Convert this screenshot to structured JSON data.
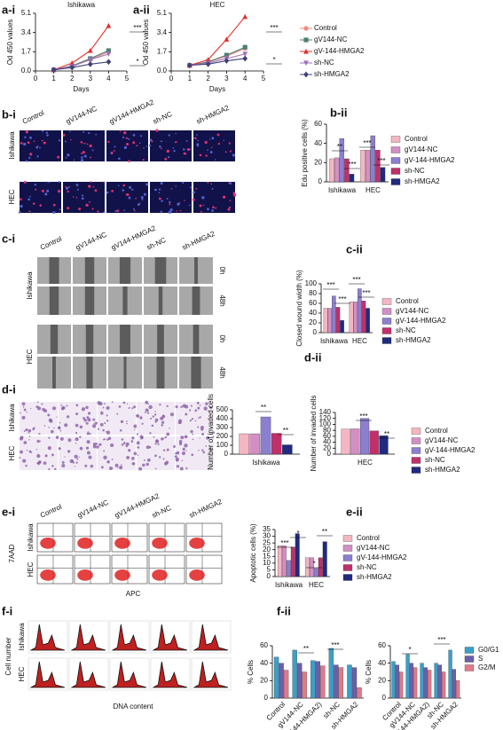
{
  "panel_labels": [
    "a-i",
    "a-ii",
    "b-i",
    "b-ii",
    "c-i",
    "c-ii",
    "d-i",
    "d-ii",
    "e-i",
    "e-ii",
    "f-i",
    "f-ii"
  ],
  "images": {
    "b_i": {
      "columns": [
        "Control",
        "gV144-NC",
        "gV144-HMGA2",
        "sh-NC",
        "sh-HMGA2"
      ],
      "rows": [
        "Ishikawa",
        "HEC"
      ]
    },
    "c_i": {
      "columns": [
        "Control",
        "gV144-NC",
        "gV144-HMGA2",
        "sh-NC",
        "sh-HMGA2"
      ],
      "rows": [
        "Ishikawa",
        "HEC"
      ],
      "times": [
        "0h",
        "48h"
      ]
    },
    "d_i": {
      "rows": [
        "Ishikawa",
        "HEC"
      ]
    },
    "e_i": {
      "columns": [
        "Control",
        "gV144-NC",
        "gV144-HMGA2",
        "sh-NC",
        "sh-HMGA2"
      ],
      "rows": [
        "Ishikawa",
        "HEC"
      ],
      "ylabel": "7AAD",
      "xlabel": "APC"
    },
    "f_i": {
      "rows": [
        "Ishikawa",
        "HEC"
      ],
      "ylabel": "Cell number",
      "xlabel": "DNA content"
    }
  },
  "chart_data": [
    {
      "type": "line",
      "title": "Ishikawa",
      "ylabel": "Od 450 values",
      "xlabel": "Days",
      "x": [
        1,
        2,
        3,
        4
      ],
      "xlim": [
        0,
        5
      ],
      "xticks": [
        0,
        1,
        2,
        3,
        4,
        5
      ],
      "ylim": [
        0,
        5.1
      ],
      "yticks": [
        {
          "value": 0,
          "label": "0.0"
        },
        1.7,
        3.4,
        5.1
      ],
      "series": [
        {
          "name": "Control",
          "color": "#f08a80",
          "marker": "circle",
          "values": [
            0.1,
            0.4,
            1.0,
            1.7
          ]
        },
        {
          "name": "gV144-NC",
          "color": "#4f7f74",
          "marker": "square",
          "values": [
            0.1,
            0.45,
            1.1,
            1.8
          ]
        },
        {
          "name": "gV-144-HMGA2",
          "color": "#e0302a",
          "marker": "triangle",
          "values": [
            0.1,
            0.7,
            1.8,
            4.0
          ]
        },
        {
          "name": "sh-NC",
          "color": "#a070b8",
          "marker": "triangle-down",
          "values": [
            0.1,
            0.4,
            1.0,
            1.5
          ]
        },
        {
          "name": "sh-HMGA2",
          "color": "#40407a",
          "marker": "diamond",
          "values": [
            0.1,
            0.3,
            0.6,
            0.8
          ]
        }
      ],
      "annotations": [
        "***",
        "*"
      ]
    },
    {
      "type": "line",
      "title": "HEC",
      "ylabel": "Od 450 values",
      "xlabel": "Days",
      "x": [
        1,
        2,
        3,
        4
      ],
      "xlim": [
        0,
        5
      ],
      "xticks": [
        0,
        1,
        2,
        3,
        4,
        5
      ],
      "ylim": [
        0,
        5.1
      ],
      "yticks": [
        {
          "value": 0,
          "label": "0.0"
        },
        1.7,
        3.4,
        5.1
      ],
      "series": [
        {
          "name": "Control",
          "color": "#f08a80",
          "marker": "circle",
          "values": [
            0.5,
            0.8,
            1.3,
            2.0
          ]
        },
        {
          "name": "gV144-NC",
          "color": "#4f7f74",
          "marker": "square",
          "values": [
            0.5,
            0.8,
            1.4,
            2.1
          ]
        },
        {
          "name": "gV-144-HMGA2",
          "color": "#e0302a",
          "marker": "triangle",
          "values": [
            0.5,
            1.0,
            2.8,
            4.8
          ]
        },
        {
          "name": "sh-NC",
          "color": "#a070b8",
          "marker": "triangle-down",
          "values": [
            0.5,
            0.7,
            1.1,
            1.5
          ]
        },
        {
          "name": "sh-HMGA2",
          "color": "#40407a",
          "marker": "diamond",
          "values": [
            0.5,
            0.6,
            0.9,
            1.1
          ]
        }
      ],
      "annotations": [
        "***",
        "*"
      ],
      "legend": "right"
    },
    {
      "type": "bar",
      "ylabel": "Edu positive cells (%)",
      "categories": [
        "Ishikawa",
        "HEC"
      ],
      "ylim": [
        0,
        60
      ],
      "yticks": [
        0,
        20,
        40,
        60
      ],
      "series": [
        {
          "name": "Control",
          "color": "#f4b6c2",
          "values": [
            24,
            33
          ]
        },
        {
          "name": "gV144-NC",
          "color": "#d38fc4",
          "values": [
            25,
            33
          ]
        },
        {
          "name": "gV-144-HMGA2",
          "color": "#8c7fd0",
          "values": [
            45,
            48
          ]
        },
        {
          "name": "sh-NC",
          "color": "#c0306a",
          "values": [
            24,
            33
          ]
        },
        {
          "name": "sh-HMGA2",
          "color": "#1f2a80",
          "values": [
            8,
            15
          ]
        }
      ],
      "annotations": [
        "**",
        "***",
        "***",
        "***"
      ],
      "legend": "right"
    },
    {
      "type": "bar",
      "ylabel": "Closed wound width (%)",
      "categories": [
        "Ishikawa",
        "HEC"
      ],
      "ylim": [
        0,
        100
      ],
      "yticks": [
        0,
        20,
        40,
        60,
        80,
        100
      ],
      "series": [
        {
          "name": "Control",
          "color": "#f4b6c2",
          "values": [
            50,
            63
          ]
        },
        {
          "name": "gV144-NC",
          "color": "#d38fc4",
          "values": [
            50,
            63
          ]
        },
        {
          "name": "gV-144-HMGA2",
          "color": "#8c7fd0",
          "values": [
            75,
            90
          ]
        },
        {
          "name": "sh-NC",
          "color": "#c0306a",
          "values": [
            52,
            65
          ]
        },
        {
          "name": "sh-HMGA2",
          "color": "#1f2a80",
          "values": [
            25,
            50
          ]
        }
      ],
      "annotations": [
        "***",
        "***",
        "***",
        "***"
      ],
      "legend": "right"
    },
    {
      "type": "bar",
      "ylabel": "Number of invaded cells",
      "categories": [
        "Ishikawa"
      ],
      "ylim": [
        0,
        500
      ],
      "yticks": [
        0,
        100,
        200,
        300,
        400,
        500
      ],
      "series": [
        {
          "name": "Control",
          "color": "#f4b6c2",
          "values": [
            230
          ]
        },
        {
          "name": "gV144-NC",
          "color": "#d38fc4",
          "values": [
            230
          ]
        },
        {
          "name": "gV-144-HMGA2",
          "color": "#8c7fd0",
          "values": [
            420
          ]
        },
        {
          "name": "sh-NC",
          "color": "#c0306a",
          "values": [
            235
          ]
        },
        {
          "name": "sh-HMGA2",
          "color": "#1f2a80",
          "values": [
            105
          ]
        }
      ],
      "annotations": [
        "**",
        "**"
      ]
    },
    {
      "type": "bar",
      "ylabel": "Number of invaded cells",
      "categories": [
        "HEC"
      ],
      "ylim": [
        0,
        140
      ],
      "yticks": [
        0,
        20,
        40,
        60,
        80,
        100,
        120,
        140
      ],
      "series": [
        {
          "name": "Control",
          "color": "#f4b6c2",
          "values": [
            84
          ]
        },
        {
          "name": "gV144-NC",
          "color": "#d38fc4",
          "values": [
            85
          ]
        },
        {
          "name": "gV-144-HMGA2",
          "color": "#8c7fd0",
          "values": [
            120
          ]
        },
        {
          "name": "sh-NC",
          "color": "#c0306a",
          "values": [
            78
          ]
        },
        {
          "name": "sh-HMGA2",
          "color": "#1f2a80",
          "values": [
            62
          ]
        }
      ],
      "annotations": [
        "***",
        "**"
      ],
      "legend": "right"
    },
    {
      "type": "bar",
      "ylabel": "Apoptotic cells (%)",
      "categories": [
        "Ishikawa",
        "HEC"
      ],
      "ylim": [
        0,
        35
      ],
      "yticks": [
        0,
        5,
        10,
        15,
        20,
        25,
        30,
        35
      ],
      "series": [
        {
          "name": "Control",
          "color": "#f4b6c2",
          "values": [
            23,
            14
          ]
        },
        {
          "name": "gV144-NC",
          "color": "#d38fc4",
          "values": [
            23,
            14
          ]
        },
        {
          "name": "gV-144-HMGA2",
          "color": "#8c7fd0",
          "values": [
            12,
            6
          ]
        },
        {
          "name": "sh-NC",
          "color": "#c0306a",
          "values": [
            22,
            14
          ]
        },
        {
          "name": "sh-HMGA2",
          "color": "#1f2a80",
          "values": [
            32,
            26
          ]
        }
      ],
      "annotations": [
        "***",
        "*",
        "*",
        "**"
      ],
      "legend": "right"
    },
    {
      "type": "bar",
      "ylabel": "% Cells",
      "xlabel": "Ishikawa",
      "categories": [
        "Control",
        "gV144-NC",
        "gV-144-HMGA2)",
        "sh-NC",
        "sh-HMGA2"
      ],
      "ylim": [
        0,
        60
      ],
      "yticks": [
        0,
        20,
        40,
        60
      ],
      "series": [
        {
          "name": "G0/G1",
          "color": "#3aa0c8",
          "values": [
            47,
            55,
            43,
            57,
            38
          ]
        },
        {
          "name": "S",
          "color": "#6b5fa8",
          "values": [
            40,
            40,
            42,
            38,
            35
          ]
        },
        {
          "name": "G2/M",
          "color": "#e07a8a",
          "values": [
            32,
            30,
            37,
            35,
            12
          ]
        }
      ],
      "annotations": [
        "**",
        "***"
      ]
    },
    {
      "type": "bar",
      "ylabel": "% Cells",
      "xlabel": "HEC",
      "categories": [
        "Control",
        "gV144-NC",
        "gV-144-HMGA2)",
        "sh-NC",
        "sh-HMGA2"
      ],
      "ylim": [
        0,
        60
      ],
      "yticks": [
        0,
        20,
        40,
        60
      ],
      "series": [
        {
          "name": "G0/G1",
          "color": "#3aa0c8",
          "values": [
            42,
            50,
            40,
            40,
            55
          ]
        },
        {
          "name": "S",
          "color": "#6b5fa8",
          "values": [
            38,
            40,
            35,
            38,
            33
          ]
        },
        {
          "name": "G2/M",
          "color": "#e07a8a",
          "values": [
            30,
            35,
            32,
            30,
            20
          ]
        }
      ],
      "annotations": [
        "*",
        "***"
      ],
      "legend": "right"
    }
  ]
}
